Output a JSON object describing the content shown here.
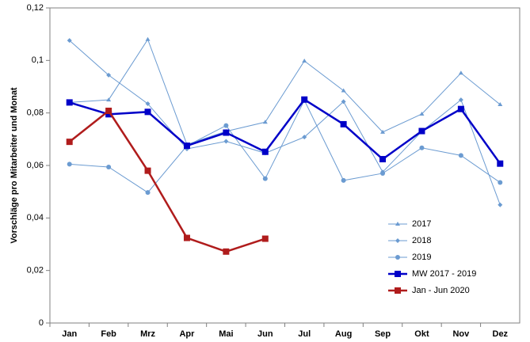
{
  "chart_data": {
    "type": "line",
    "y_label": "Vorschläge pro Mitarbeiter und Monat",
    "categories": [
      "Jan",
      "Feb",
      "Mrz",
      "Apr",
      "Mai",
      "Jun",
      "Jul",
      "Aug",
      "Sep",
      "Okt",
      "Nov",
      "Dez"
    ],
    "ylim": [
      0,
      0.12
    ],
    "yticks": [
      0,
      {
        "value": 0.02,
        "label": "0,02"
      },
      {
        "value": 0.04,
        "label": "0,04"
      },
      {
        "value": 0.06,
        "label": "0,06"
      },
      {
        "value": 0.08,
        "label": "0,08"
      },
      {
        "value": 0.1,
        "label": "0,1"
      },
      {
        "value": 0.12,
        "label": "0,12"
      }
    ],
    "grid": false,
    "legend": "lower right",
    "series": [
      {
        "name": "2017",
        "color": "#6b9bd1",
        "marker": "triangle",
        "width": 1,
        "values": [
          0.084,
          0.085,
          0.108,
          0.068,
          0.073,
          0.0765,
          0.0998,
          0.0885,
          0.0727,
          0.0796,
          0.0952,
          0.0832
        ]
      },
      {
        "name": "2018",
        "color": "#6b9bd1",
        "marker": "diamond",
        "width": 1,
        "values": [
          0.1076,
          0.0944,
          0.0835,
          0.0663,
          0.0692,
          0.0647,
          0.0708,
          0.0843,
          0.0575,
          0.073,
          0.085,
          0.045
        ]
      },
      {
        "name": "2019",
        "color": "#6b9bd1",
        "marker": "circle",
        "width": 1,
        "values": [
          0.0605,
          0.0594,
          0.0497,
          0.0675,
          0.0752,
          0.055,
          0.0848,
          0.0543,
          0.057,
          0.0667,
          0.0638,
          0.0535
        ]
      },
      {
        "name": "MW 2017 - 2019",
        "color": "#0000c8",
        "marker": "square",
        "width": 2.5,
        "values": [
          0.084,
          0.0795,
          0.0804,
          0.0675,
          0.0725,
          0.0652,
          0.0851,
          0.0757,
          0.0624,
          0.0731,
          0.0815,
          0.0607
        ]
      },
      {
        "name": "Jan - Jun 2020",
        "color": "#b01c1c",
        "marker": "square",
        "width": 2.5,
        "values": [
          0.069,
          0.0808,
          0.058,
          0.0324,
          0.0272,
          0.0321,
          null,
          null,
          null,
          null,
          null,
          null
        ]
      }
    ]
  }
}
